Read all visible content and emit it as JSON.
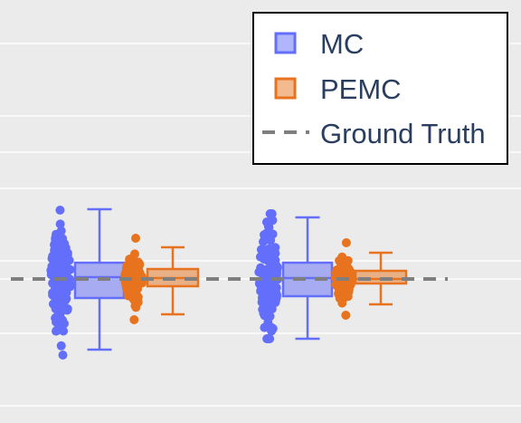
{
  "chart_data": {
    "type": "box",
    "orientation": "vertical",
    "ylim": [
      -1.6,
      1.7
    ],
    "grid": true,
    "legend_position": "top-right",
    "ground_truth": 0,
    "colors": {
      "MC": "#636efa",
      "PEMC": "#e8731f",
      "ground_truth": "#7f7f7f",
      "background": "#ebebeb",
      "grid": "#ffffff"
    },
    "legend": [
      {
        "key": "mc",
        "label": "MC",
        "marker": "box",
        "color": "#636efa"
      },
      {
        "key": "pemc",
        "label": "PEMC",
        "marker": "box",
        "color": "#e8731f"
      },
      {
        "key": "gt",
        "label": "Ground Truth",
        "marker": "dash",
        "color": "#7f7f7f"
      }
    ],
    "groups": [
      {
        "index": 0,
        "series": [
          {
            "name": "MC",
            "lower_fence": -0.78,
            "q1": -0.21,
            "median": 0.02,
            "q3": 0.18,
            "upper_fence": 0.77,
            "point_min": -0.84,
            "point_max": 0.76
          },
          {
            "name": "PEMC",
            "lower_fence": -0.39,
            "q1": -0.08,
            "median": 0.01,
            "q3": 0.11,
            "upper_fence": 0.35,
            "point_min": -0.45,
            "point_max": 0.45
          }
        ]
      },
      {
        "index": 1,
        "series": [
          {
            "name": "MC",
            "lower_fence": -0.66,
            "q1": -0.19,
            "median": 0.01,
            "q3": 0.18,
            "upper_fence": 0.68,
            "point_min": -0.66,
            "point_max": 0.72
          },
          {
            "name": "PEMC",
            "lower_fence": -0.28,
            "q1": -0.05,
            "median": 0.0,
            "q3": 0.09,
            "upper_fence": 0.29,
            "point_min": -0.4,
            "point_max": 0.4
          }
        ]
      }
    ]
  }
}
